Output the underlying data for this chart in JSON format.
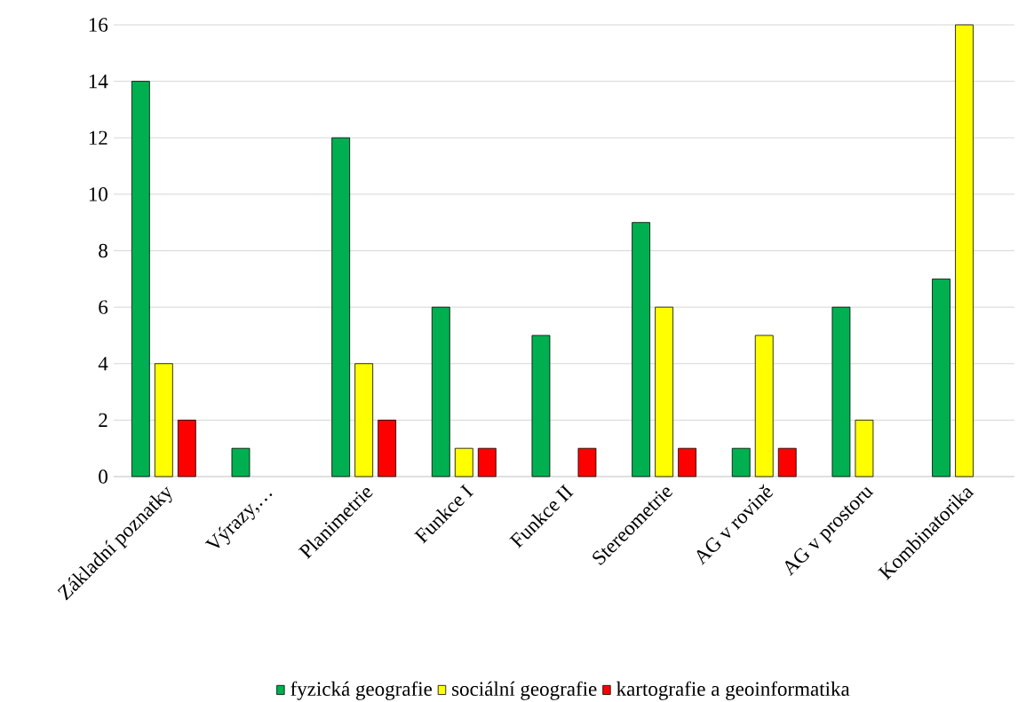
{
  "chart_data": {
    "type": "bar",
    "categories": [
      "Základní poznatky",
      "Výrazy,…",
      "Planimetrie",
      "Funkce I",
      "Funkce II",
      "Stereometrie",
      "AG v rovině",
      "AG v prostoru",
      "Kombinatorika"
    ],
    "series": [
      {
        "name": "fyzická geografie",
        "color": "#00b050",
        "values": [
          14,
          1,
          12,
          6,
          5,
          9,
          1,
          6,
          7
        ]
      },
      {
        "name": "sociální geografie",
        "color": "#ffff00",
        "values": [
          4,
          null,
          4,
          1,
          null,
          6,
          5,
          2,
          16
        ]
      },
      {
        "name": "kartografie a geoinformatika",
        "color": "#ff0000",
        "values": [
          2,
          null,
          2,
          1,
          1,
          1,
          1,
          null,
          null
        ]
      }
    ],
    "ylim": [
      0,
      16
    ],
    "yticks": [
      0,
      2,
      4,
      6,
      8,
      10,
      12,
      14,
      16
    ],
    "grid": "y",
    "legend": "bottom"
  }
}
